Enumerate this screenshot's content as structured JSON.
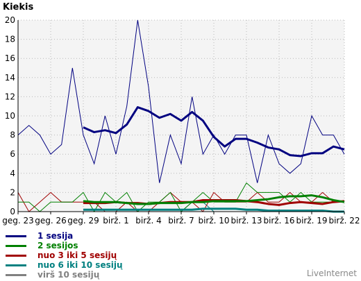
{
  "chart_data": {
    "type": "line",
    "ylabel": "Kiekis",
    "ylim": [
      0,
      20
    ],
    "yticks": [
      0,
      2,
      4,
      6,
      8,
      10,
      12,
      14,
      16,
      18,
      20
    ],
    "x_tick_labels": [
      "geg. 23",
      "geg. 26",
      "geg. 29",
      "birž. 1",
      "birž. 4",
      "birž. 7",
      "birž. 10",
      "birž. 13",
      "birž. 16",
      "birž. 19",
      "birž. 22"
    ],
    "grid": true,
    "legend_position": "bottom-left",
    "series": [
      {
        "name": "1 sesija",
        "color": "#000080",
        "values": [
          8,
          9,
          8,
          6,
          7,
          15,
          8,
          5,
          10,
          6,
          11,
          20,
          13,
          3,
          8,
          5,
          12,
          6,
          8,
          6,
          8,
          8,
          3,
          8,
          5,
          4,
          5,
          10,
          8,
          8,
          6
        ],
        "moving_average": {
          "start_index": 6,
          "values": [
            8.8,
            8.3,
            8.5,
            8.2,
            9.1,
            10.9,
            10.5,
            9.8,
            10.2,
            9.5,
            10.4,
            9.5,
            7.8,
            6.8,
            7.6,
            7.6,
            7.2,
            6.7,
            6.5,
            5.9,
            5.8,
            6.1,
            6.1,
            6.8,
            6.5
          ]
        }
      },
      {
        "name": "2 sesijos",
        "color": "#008000",
        "values": [
          1,
          1,
          0,
          1,
          1,
          1,
          2,
          0,
          2,
          1,
          2,
          0,
          1,
          1,
          2,
          0,
          1,
          2,
          1,
          1,
          1,
          3,
          2,
          2,
          2,
          1,
          2,
          1,
          1,
          1,
          1
        ],
        "moving_average": {
          "start_index": 6,
          "values": [
            1.1,
            1.0,
            1.0,
            1.0,
            0.9,
            0.8,
            0.8,
            0.9,
            0.9,
            0.9,
            1.0,
            1.0,
            1.1,
            1.1,
            1.1,
            1.1,
            1.2,
            1.3,
            1.5,
            1.6,
            1.6,
            1.7,
            1.5,
            1.2,
            1.0
          ]
        }
      },
      {
        "name": "nuo 3 iki 5 sesijų",
        "color": "#a00000",
        "values": [
          2,
          0,
          1,
          2,
          1,
          1,
          1,
          1,
          0,
          0,
          1,
          0,
          0,
          1,
          2,
          1,
          1,
          0,
          2,
          1,
          1,
          1,
          2,
          1,
          1,
          2,
          1,
          1,
          2,
          1,
          1
        ],
        "moving_average": {
          "start_index": 6,
          "values": [
            0.9,
            0.9,
            0.9,
            1.0,
            0.9,
            0.9,
            0.8,
            0.9,
            1.0,
            1.0,
            1.0,
            1.2,
            1.2,
            1.2,
            1.2,
            1.1,
            1.0,
            0.8,
            0.7,
            0.9,
            1.0,
            0.9,
            0.8,
            1.0,
            1.1
          ]
        }
      },
      {
        "name": "nuo 6 iki 10 sesijų",
        "color": "#008080",
        "values": [
          0,
          0,
          0,
          0,
          0,
          0,
          0,
          0,
          0,
          0,
          0,
          0,
          0,
          0,
          0,
          0,
          1,
          1,
          0,
          0,
          0,
          0,
          0,
          0,
          0,
          0,
          0,
          0,
          0,
          0,
          0
        ],
        "moving_average": {
          "start_index": 6,
          "values": [
            0.2,
            0.2,
            0.2,
            0.2,
            0.2,
            0.2,
            0.2,
            0.2,
            0.2,
            0.2,
            0.2,
            0.3,
            0.3,
            0.3,
            0.3,
            0.2,
            0.2,
            0.1,
            0.1,
            0.1,
            0.1,
            0.1,
            0.1,
            0.0,
            0.0
          ]
        }
      },
      {
        "name": "virš 10 sesijų",
        "color": "#808080",
        "values": [
          0,
          0,
          0,
          0,
          0,
          0,
          0,
          0,
          0,
          0,
          0,
          0,
          0,
          0,
          0,
          0,
          0,
          0,
          0,
          0,
          0,
          0,
          0,
          0,
          0,
          0,
          0,
          0,
          0,
          0,
          0
        ]
      }
    ]
  },
  "watermark": "LiveInternet",
  "colors": {
    "plot_background": "#f4f4f4",
    "grid": "#b8b8b8"
  }
}
